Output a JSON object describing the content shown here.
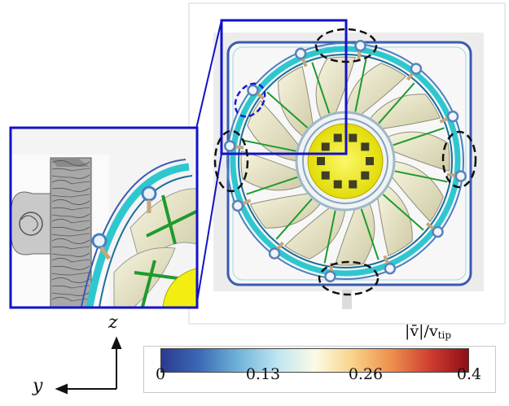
{
  "axes": {
    "z_label": "z",
    "y_label": "y"
  },
  "colorbar": {
    "title_main": "|v̄|/v",
    "title_sub": "tip",
    "ticks": [
      "0",
      "0.13",
      "0.26",
      "0.4"
    ]
  },
  "colors": {
    "inset_frame": "#1212c8",
    "hub": "#f2ee12",
    "ring": "#2fc7cf",
    "blade": "#ece9cc",
    "strut": "#1f9a2c",
    "highlight_black": "#111111",
    "highlight_blue": "#1a1ad0"
  }
}
